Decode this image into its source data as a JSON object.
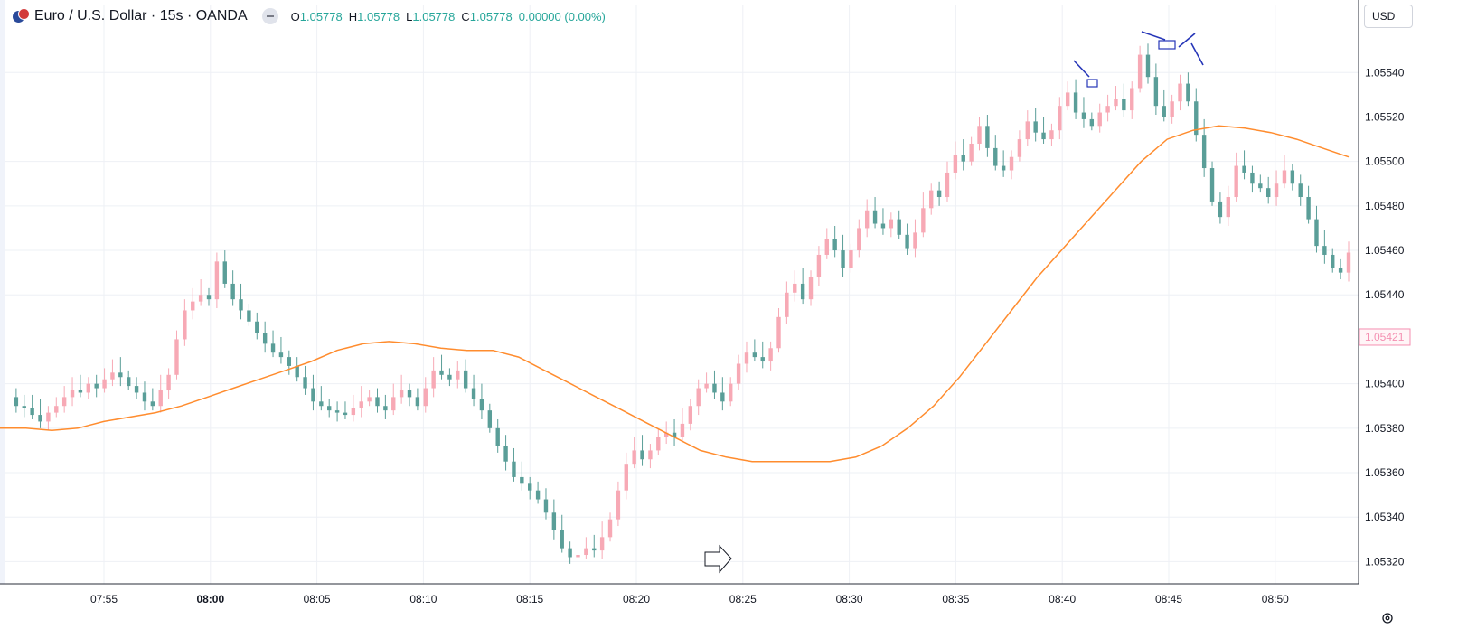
{
  "legend": {
    "symbol": "Euro / U.S. Dollar · 15s · OANDA",
    "icon": "eur-usd-flag-icon",
    "ohlc": [
      {
        "key": "O",
        "value": "1.05778"
      },
      {
        "key": "H",
        "value": "1.05778"
      },
      {
        "key": "L",
        "value": "1.05778"
      },
      {
        "key": "C",
        "value": "1.05778"
      },
      {
        "key": "",
        "value": "0.00000 (0.00%)"
      }
    ]
  },
  "currency": "USD",
  "colors": {
    "up": "#f7a9b5",
    "down": "#5a9e98",
    "ma": "#ff8c2e",
    "annotation": "#2636b8",
    "grid": "#eef0f5",
    "axis_text": "#131722",
    "price_badge": "#f48fb1"
  },
  "chart_data": {
    "type": "candlestick",
    "title": "",
    "x_ticks": [
      {
        "label": "07:55",
        "bold": false
      },
      {
        "label": "08:00",
        "bold": true
      },
      {
        "label": "08:05",
        "bold": false
      },
      {
        "label": "08:10",
        "bold": false
      },
      {
        "label": "08:15",
        "bold": false
      },
      {
        "label": "08:20",
        "bold": false
      },
      {
        "label": "08:25",
        "bold": false
      },
      {
        "label": "08:30",
        "bold": false
      },
      {
        "label": "08:35",
        "bold": false
      },
      {
        "label": "08:40",
        "bold": false
      },
      {
        "label": "08:45",
        "bold": false
      },
      {
        "label": "08:50",
        "bold": false
      }
    ],
    "y_ticks": [
      "1.05540",
      "1.05520",
      "1.05500",
      "1.05480",
      "1.05460",
      "1.05440",
      "1.05400",
      "1.05380",
      "1.05360",
      "1.05340",
      "1.05320"
    ],
    "ylim": [
      1.0531,
      1.05558
    ],
    "price_badge": "1.05421",
    "price_path": [
      1.05394,
      1.0539,
      1.05389,
      1.05386,
      1.05383,
      1.05387,
      1.0539,
      1.05394,
      1.05397,
      1.05396,
      1.054,
      1.05398,
      1.05402,
      1.05405,
      1.05403,
      1.05399,
      1.05396,
      1.05392,
      1.0539,
      1.05397,
      1.05404,
      1.0542,
      1.05433,
      1.05437,
      1.0544,
      1.05438,
      1.05455,
      1.05445,
      1.05438,
      1.05433,
      1.05428,
      1.05423,
      1.05418,
      1.05414,
      1.05412,
      1.05408,
      1.05403,
      1.05398,
      1.05392,
      1.0539,
      1.05388,
      1.05387,
      1.05386,
      1.05389,
      1.05392,
      1.05394,
      1.0539,
      1.05388,
      1.05394,
      1.05397,
      1.05394,
      1.0539,
      1.05398,
      1.05406,
      1.05404,
      1.05402,
      1.05406,
      1.05398,
      1.05393,
      1.05388,
      1.0538,
      1.05372,
      1.05365,
      1.05358,
      1.05355,
      1.05352,
      1.05348,
      1.05342,
      1.05334,
      1.05326,
      1.05322,
      1.05323,
      1.05326,
      1.05325,
      1.05331,
      1.05339,
      1.05352,
      1.05364,
      1.0537,
      1.05366,
      1.0537,
      1.05376,
      1.05378,
      1.05376,
      1.05382,
      1.0539,
      1.05398,
      1.054,
      1.05396,
      1.05392,
      1.054,
      1.05409,
      1.05414,
      1.05412,
      1.0541,
      1.05416,
      1.0543,
      1.05441,
      1.05445,
      1.05438,
      1.05448,
      1.05458,
      1.05465,
      1.0546,
      1.05452,
      1.0546,
      1.0547,
      1.05478,
      1.05472,
      1.0547,
      1.05474,
      1.05467,
      1.05461,
      1.05468,
      1.05479,
      1.05487,
      1.05484,
      1.05495,
      1.05503,
      1.055,
      1.05508,
      1.05516,
      1.05506,
      1.05498,
      1.05496,
      1.05502,
      1.0551,
      1.05518,
      1.05513,
      1.0551,
      1.05514,
      1.05525,
      1.05531,
      1.05522,
      1.05519,
      1.05516,
      1.05522,
      1.05525,
      1.05528,
      1.05523,
      1.05533,
      1.05548,
      1.05538,
      1.05525,
      1.0552,
      1.05527,
      1.05535,
      1.05527,
      1.05512,
      1.05497,
      1.05482,
      1.05475,
      1.05484,
      1.05498,
      1.05495,
      1.0549,
      1.05488,
      1.05484,
      1.0549,
      1.05496,
      1.0549,
      1.05484,
      1.05474,
      1.05462,
      1.05458,
      1.05452,
      1.0545,
      1.05459
    ],
    "ma_path": [
      1.0538,
      1.0538,
      1.05379,
      1.0538,
      1.05383,
      1.05385,
      1.05387,
      1.0539,
      1.05394,
      1.05398,
      1.05402,
      1.05406,
      1.0541,
      1.05415,
      1.05418,
      1.05419,
      1.05418,
      1.05416,
      1.05415,
      1.05415,
      1.05412,
      1.05406,
      1.054,
      1.05394,
      1.05388,
      1.05382,
      1.05376,
      1.0537,
      1.05367,
      1.05365,
      1.05365,
      1.05365,
      1.05365,
      1.05367,
      1.05372,
      1.0538,
      1.0539,
      1.05403,
      1.05418,
      1.05433,
      1.05448,
      1.05461,
      1.05474,
      1.05487,
      1.055,
      1.0551,
      1.05514,
      1.05516,
      1.05515,
      1.05513,
      1.0551,
      1.05506,
      1.05502
    ],
    "annotations": {
      "marker_boxes": 2,
      "pointer_lines": 4,
      "arrow_icon": "hand-pointer-arrow-icon"
    }
  }
}
